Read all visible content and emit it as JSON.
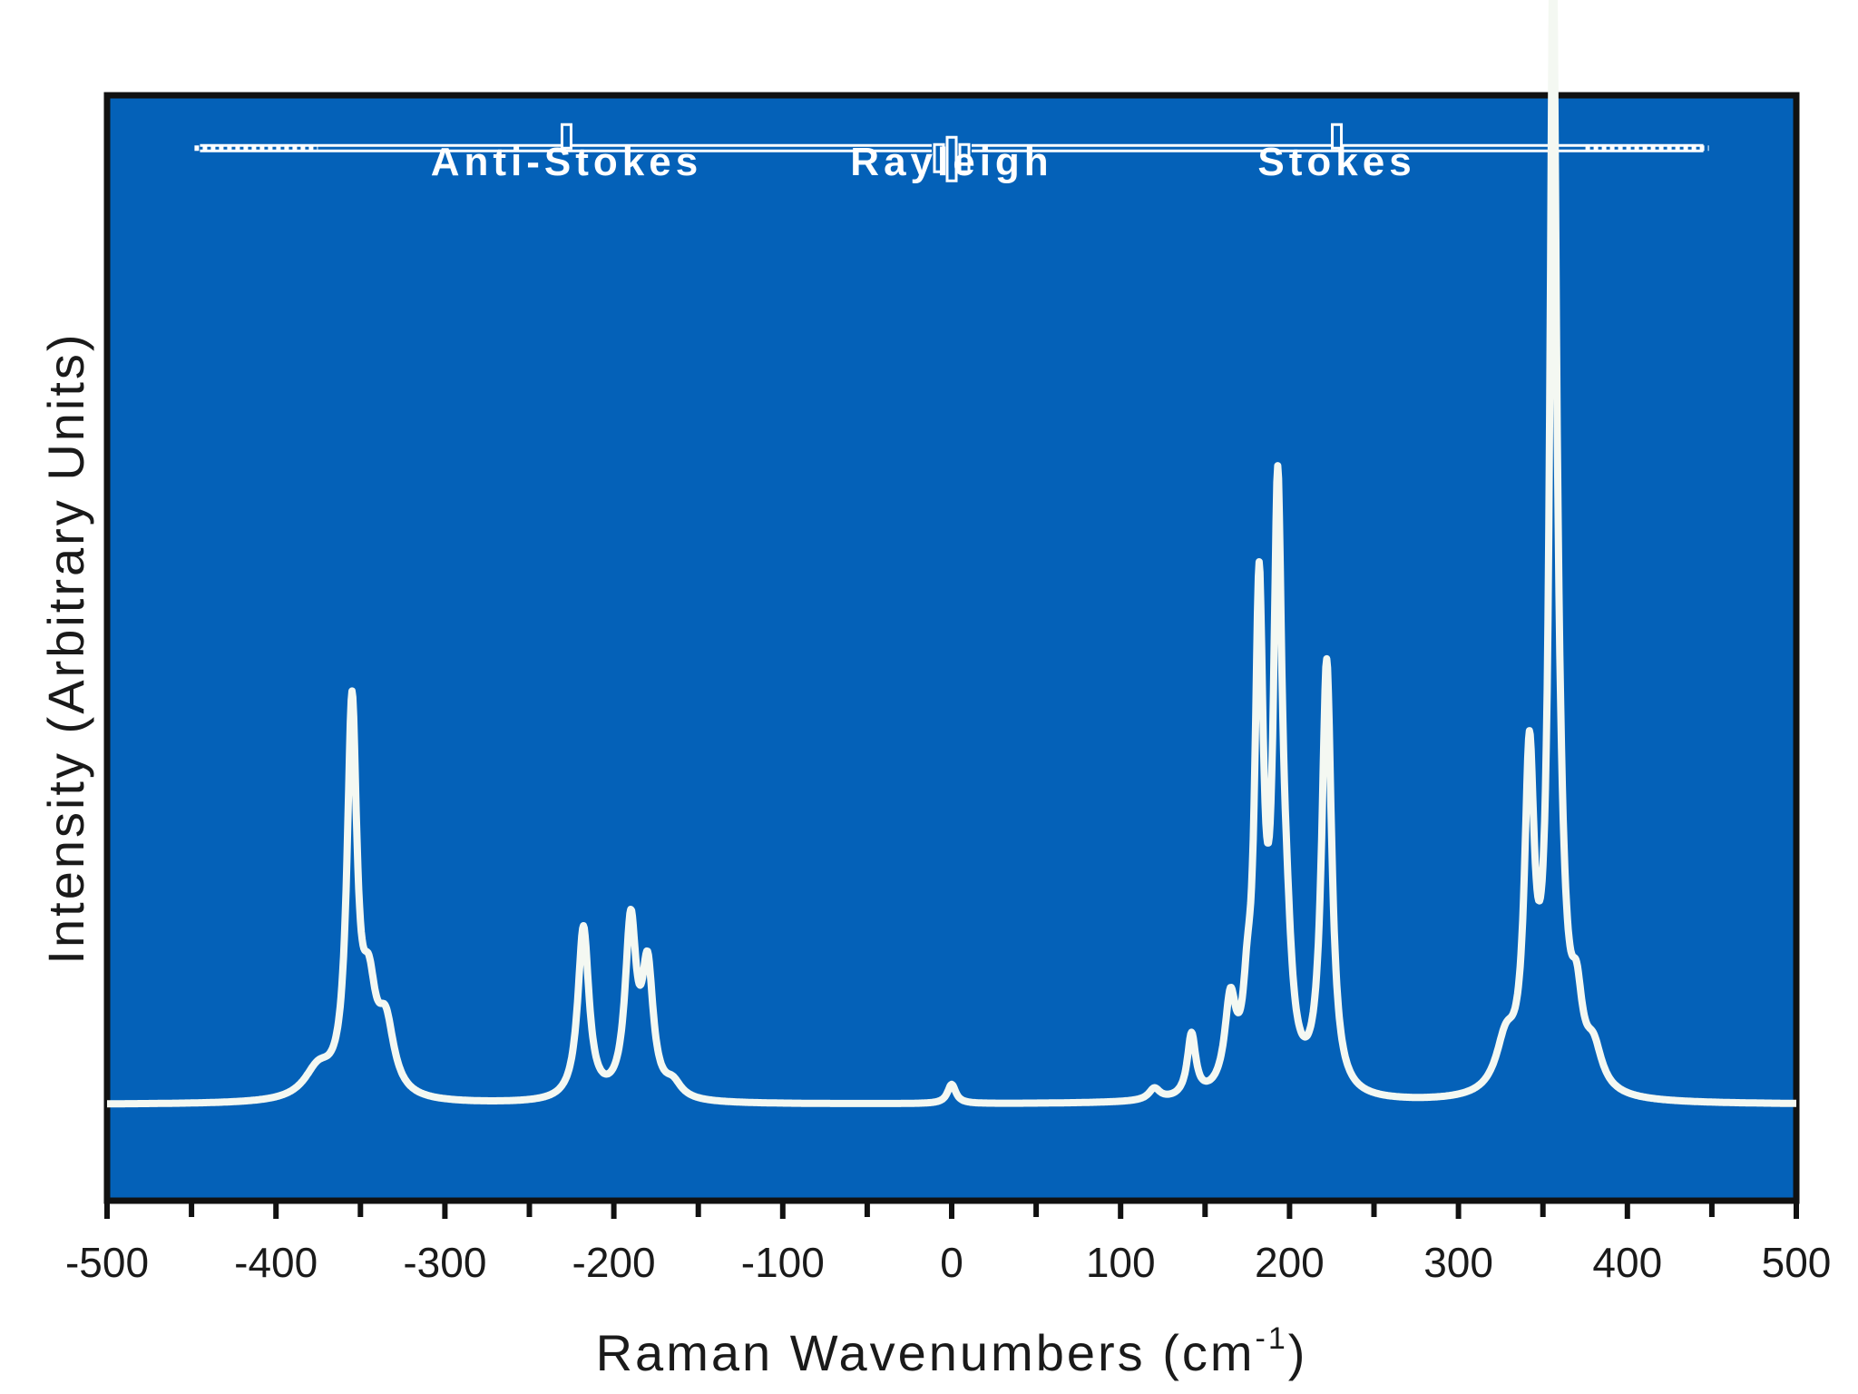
{
  "chart_data": {
    "type": "line",
    "title": "",
    "xlabel": "Raman Wavenumbers (cm",
    "xlabel_sup": "-1",
    "xlabel_close": ")",
    "ylabel": "Intensity (Arbitrary Units)",
    "xlim": [
      -500,
      500
    ],
    "ylim": [
      -0.1,
      1.05
    ],
    "grid": false,
    "background_color": "#0461b8",
    "line_color": "#f4f8f2",
    "x_ticks": [
      -500,
      -400,
      -300,
      -200,
      -100,
      0,
      100,
      200,
      300,
      400,
      500
    ],
    "x_tick_labels": [
      "-500",
      "-400",
      "-300",
      "-200",
      "-100",
      "0",
      "100",
      "200",
      "300",
      "400",
      "500"
    ],
    "x_minor_ticks": [
      -450,
      -350,
      -250,
      -150,
      -50,
      50,
      150,
      250,
      350,
      450
    ],
    "region_labels": [
      {
        "text": "Anti-Stokes",
        "x": -228
      },
      {
        "text": "Rayleigh",
        "x": 0
      },
      {
        "text": "Stokes",
        "x": 228
      }
    ],
    "region_bar": {
      "x_start": -445,
      "x_end": 445,
      "y": 0.995
    },
    "series": [
      {
        "baseline": 0.0,
        "peaks": [
          {
            "x": -375,
            "height": 0.03,
            "width": 10
          },
          {
            "x": -355,
            "height": 0.4,
            "width": 3.5
          },
          {
            "x": -345,
            "height": 0.09,
            "width": 5
          },
          {
            "x": -335,
            "height": 0.07,
            "width": 6
          },
          {
            "x": -218,
            "height": 0.18,
            "width": 4
          },
          {
            "x": -190,
            "height": 0.18,
            "width": 4
          },
          {
            "x": -180,
            "height": 0.13,
            "width": 4
          },
          {
            "x": -165,
            "height": 0.015,
            "width": 6
          },
          {
            "x": 0,
            "height": 0.02,
            "width": 3
          },
          {
            "x": 120,
            "height": 0.012,
            "width": 4
          },
          {
            "x": 142,
            "height": 0.065,
            "width": 3
          },
          {
            "x": 165,
            "height": 0.09,
            "width": 4
          },
          {
            "x": 175,
            "height": 0.06,
            "width": 3
          },
          {
            "x": 182,
            "height": 0.5,
            "width": 3
          },
          {
            "x": 193,
            "height": 0.58,
            "width": 3
          },
          {
            "x": 198,
            "height": 0.1,
            "width": 4
          },
          {
            "x": 222,
            "height": 0.45,
            "width": 3.5
          },
          {
            "x": 328,
            "height": 0.05,
            "width": 7
          },
          {
            "x": 342,
            "height": 0.33,
            "width": 3.5
          },
          {
            "x": 356,
            "height": 0.97,
            "width": 2.2
          },
          {
            "x": 358,
            "height": 0.25,
            "width": 5
          },
          {
            "x": 370,
            "height": 0.07,
            "width": 4
          },
          {
            "x": 380,
            "height": 0.04,
            "width": 6
          }
        ]
      }
    ]
  }
}
